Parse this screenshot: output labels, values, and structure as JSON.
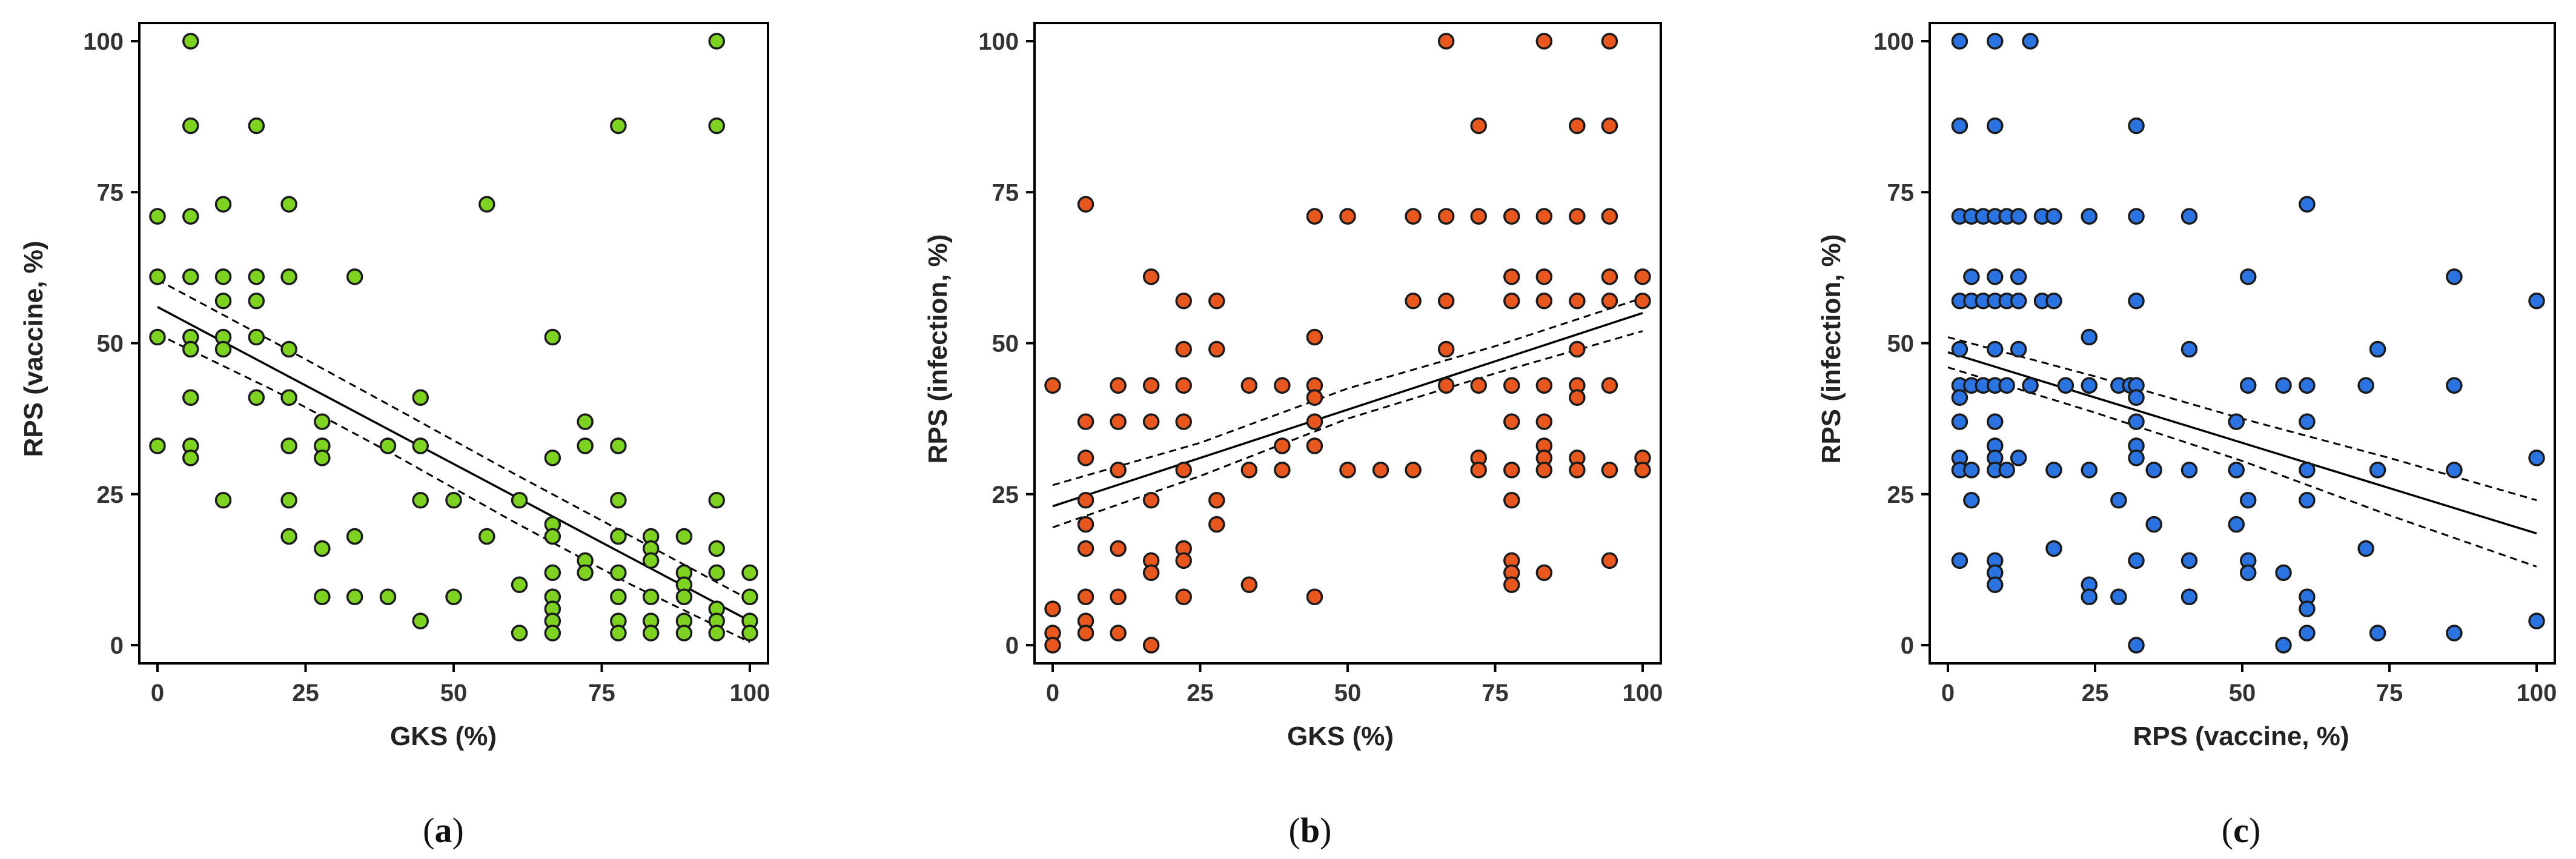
{
  "chart_data": [
    {
      "type": "scatter",
      "panel_label": "a",
      "xlabel": "GKS (%)",
      "ylabel": "RPS (vaccine, %)",
      "xlim": [
        0,
        100
      ],
      "ylim": [
        0,
        100
      ],
      "xticks": [
        0,
        25,
        50,
        75,
        100
      ],
      "yticks": [
        0,
        25,
        50,
        75,
        100
      ],
      "point_color": "#7ed321",
      "points": [
        [
          0,
          71
        ],
        [
          0,
          61
        ],
        [
          0,
          51
        ],
        [
          0,
          33
        ],
        [
          5.6,
          100
        ],
        [
          5.6,
          86
        ],
        [
          5.6,
          71
        ],
        [
          5.6,
          61
        ],
        [
          5.6,
          51
        ],
        [
          5.6,
          49
        ],
        [
          5.6,
          41
        ],
        [
          5.6,
          33
        ],
        [
          5.6,
          31
        ],
        [
          11.1,
          73
        ],
        [
          11.1,
          61
        ],
        [
          11.1,
          57
        ],
        [
          11.1,
          51
        ],
        [
          11.1,
          49
        ],
        [
          11.1,
          24
        ],
        [
          16.7,
          86
        ],
        [
          16.7,
          61
        ],
        [
          16.7,
          57
        ],
        [
          16.7,
          51
        ],
        [
          16.7,
          41
        ],
        [
          22.2,
          73
        ],
        [
          22.2,
          61
        ],
        [
          22.2,
          49
        ],
        [
          22.2,
          41
        ],
        [
          22.2,
          33
        ],
        [
          22.2,
          24
        ],
        [
          22.2,
          18
        ],
        [
          27.8,
          37
        ],
        [
          27.8,
          33
        ],
        [
          27.8,
          31
        ],
        [
          27.8,
          16
        ],
        [
          27.8,
          8
        ],
        [
          33.3,
          61
        ],
        [
          33.3,
          18
        ],
        [
          33.3,
          8
        ],
        [
          38.9,
          33
        ],
        [
          38.9,
          8
        ],
        [
          44.4,
          41
        ],
        [
          44.4,
          33
        ],
        [
          44.4,
          24
        ],
        [
          44.4,
          4
        ],
        [
          50,
          24
        ],
        [
          50,
          8
        ],
        [
          55.6,
          73
        ],
        [
          55.6,
          18
        ],
        [
          61.1,
          24
        ],
        [
          61.1,
          10
        ],
        [
          61.1,
          2
        ],
        [
          66.7,
          51
        ],
        [
          66.7,
          31
        ],
        [
          66.7,
          20
        ],
        [
          66.7,
          18
        ],
        [
          66.7,
          12
        ],
        [
          66.7,
          8
        ],
        [
          66.7,
          6
        ],
        [
          66.7,
          4
        ],
        [
          66.7,
          2
        ],
        [
          72.2,
          37
        ],
        [
          72.2,
          33
        ],
        [
          72.2,
          14
        ],
        [
          72.2,
          12
        ],
        [
          77.8,
          86
        ],
        [
          77.8,
          33
        ],
        [
          77.8,
          24
        ],
        [
          77.8,
          18
        ],
        [
          77.8,
          12
        ],
        [
          77.8,
          8
        ],
        [
          77.8,
          4
        ],
        [
          77.8,
          2
        ],
        [
          83.3,
          18
        ],
        [
          83.3,
          16
        ],
        [
          83.3,
          14
        ],
        [
          83.3,
          8
        ],
        [
          83.3,
          4
        ],
        [
          83.3,
          2
        ],
        [
          88.9,
          18
        ],
        [
          88.9,
          12
        ],
        [
          88.9,
          10
        ],
        [
          88.9,
          8
        ],
        [
          88.9,
          4
        ],
        [
          88.9,
          2
        ],
        [
          94.4,
          100
        ],
        [
          94.4,
          86
        ],
        [
          94.4,
          24
        ],
        [
          94.4,
          16
        ],
        [
          94.4,
          12
        ],
        [
          94.4,
          6
        ],
        [
          94.4,
          4
        ],
        [
          94.4,
          2
        ],
        [
          100,
          12
        ],
        [
          100,
          8
        ],
        [
          100,
          4
        ],
        [
          100,
          2
        ]
      ],
      "regression": {
        "x": [
          0,
          100
        ],
        "y": [
          56,
          4
        ]
      },
      "ci_upper": {
        "x": [
          0,
          20,
          40,
          60,
          80,
          100
        ],
        "y": [
          60.5,
          50,
          39.3,
          28.5,
          18,
          7.5
        ]
      },
      "ci_lower": {
        "x": [
          0,
          20,
          40,
          60,
          80,
          100
        ],
        "y": [
          51.5,
          42,
          31.5,
          20.5,
          10,
          0.5
        ]
      }
    },
    {
      "type": "scatter",
      "panel_label": "b",
      "xlabel": "GKS (%)",
      "ylabel": "RPS (infection, %)",
      "xlim": [
        0,
        100
      ],
      "ylim": [
        0,
        100
      ],
      "xticks": [
        0,
        25,
        50,
        75,
        100
      ],
      "yticks": [
        0,
        25,
        50,
        75,
        100
      ],
      "point_color": "#e8571e",
      "points": [
        [
          0,
          43
        ],
        [
          0,
          6
        ],
        [
          0,
          2
        ],
        [
          0,
          0
        ],
        [
          5.6,
          73
        ],
        [
          5.6,
          37
        ],
        [
          5.6,
          31
        ],
        [
          5.6,
          24
        ],
        [
          5.6,
          20
        ],
        [
          5.6,
          16
        ],
        [
          5.6,
          8
        ],
        [
          5.6,
          4
        ],
        [
          5.6,
          2
        ],
        [
          11.1,
          43
        ],
        [
          11.1,
          37
        ],
        [
          11.1,
          29
        ],
        [
          11.1,
          16
        ],
        [
          11.1,
          8
        ],
        [
          11.1,
          2
        ],
        [
          16.7,
          61
        ],
        [
          16.7,
          43
        ],
        [
          16.7,
          37
        ],
        [
          16.7,
          24
        ],
        [
          16.7,
          14
        ],
        [
          16.7,
          12
        ],
        [
          16.7,
          0
        ],
        [
          22.2,
          57
        ],
        [
          22.2,
          49
        ],
        [
          22.2,
          43
        ],
        [
          22.2,
          37
        ],
        [
          22.2,
          29
        ],
        [
          22.2,
          16
        ],
        [
          22.2,
          14
        ],
        [
          22.2,
          8
        ],
        [
          27.8,
          57
        ],
        [
          27.8,
          49
        ],
        [
          27.8,
          24
        ],
        [
          27.8,
          20
        ],
        [
          33.3,
          43
        ],
        [
          33.3,
          29
        ],
        [
          33.3,
          10
        ],
        [
          38.9,
          43
        ],
        [
          38.9,
          33
        ],
        [
          38.9,
          29
        ],
        [
          44.4,
          71
        ],
        [
          44.4,
          51
        ],
        [
          44.4,
          43
        ],
        [
          44.4,
          41
        ],
        [
          44.4,
          37
        ],
        [
          44.4,
          33
        ],
        [
          44.4,
          8
        ],
        [
          50,
          71
        ],
        [
          50,
          29
        ],
        [
          55.6,
          29
        ],
        [
          61.1,
          71
        ],
        [
          61.1,
          57
        ],
        [
          61.1,
          29
        ],
        [
          66.7,
          100
        ],
        [
          66.7,
          71
        ],
        [
          66.7,
          57
        ],
        [
          66.7,
          49
        ],
        [
          66.7,
          43
        ],
        [
          72.2,
          86
        ],
        [
          72.2,
          71
        ],
        [
          72.2,
          43
        ],
        [
          72.2,
          31
        ],
        [
          72.2,
          29
        ],
        [
          77.8,
          71
        ],
        [
          77.8,
          61
        ],
        [
          77.8,
          57
        ],
        [
          77.8,
          43
        ],
        [
          77.8,
          37
        ],
        [
          77.8,
          29
        ],
        [
          77.8,
          24
        ],
        [
          77.8,
          14
        ],
        [
          77.8,
          12
        ],
        [
          77.8,
          10
        ],
        [
          83.3,
          100
        ],
        [
          83.3,
          71
        ],
        [
          83.3,
          61
        ],
        [
          83.3,
          57
        ],
        [
          83.3,
          43
        ],
        [
          83.3,
          37
        ],
        [
          83.3,
          33
        ],
        [
          83.3,
          31
        ],
        [
          83.3,
          29
        ],
        [
          83.3,
          12
        ],
        [
          88.9,
          86
        ],
        [
          88.9,
          71
        ],
        [
          88.9,
          57
        ],
        [
          88.9,
          49
        ],
        [
          88.9,
          43
        ],
        [
          88.9,
          41
        ],
        [
          88.9,
          31
        ],
        [
          88.9,
          29
        ],
        [
          94.4,
          100
        ],
        [
          94.4,
          86
        ],
        [
          94.4,
          71
        ],
        [
          94.4,
          61
        ],
        [
          94.4,
          57
        ],
        [
          94.4,
          43
        ],
        [
          94.4,
          29
        ],
        [
          94.4,
          14
        ],
        [
          100,
          61
        ],
        [
          100,
          57
        ],
        [
          100,
          31
        ],
        [
          100,
          29
        ]
      ],
      "regression": {
        "x": [
          0,
          100
        ],
        "y": [
          23,
          55
        ]
      },
      "ci_upper": {
        "x": [
          0,
          25,
          50,
          75,
          100
        ],
        "y": [
          26.5,
          33.5,
          42.5,
          49.5,
          57.5
        ]
      },
      "ci_lower": {
        "x": [
          0,
          25,
          50,
          75,
          100
        ],
        "y": [
          19.5,
          28,
          37.5,
          45,
          52
        ]
      }
    },
    {
      "type": "scatter",
      "panel_label": "c",
      "xlabel": "RPS (vaccine, %)",
      "ylabel": "RPS (infection, %)",
      "xlim": [
        0,
        100
      ],
      "ylim": [
        0,
        100
      ],
      "xticks": [
        0,
        25,
        50,
        75,
        100
      ],
      "yticks": [
        0,
        25,
        50,
        75,
        100
      ],
      "point_color": "#2b73e0",
      "points": [
        [
          2,
          100
        ],
        [
          2,
          86
        ],
        [
          2,
          71
        ],
        [
          2,
          57
        ],
        [
          2,
          49
        ],
        [
          2,
          43
        ],
        [
          2,
          41
        ],
        [
          2,
          37
        ],
        [
          2,
          31
        ],
        [
          2,
          29
        ],
        [
          2,
          14
        ],
        [
          4,
          71
        ],
        [
          4,
          61
        ],
        [
          4,
          57
        ],
        [
          4,
          43
        ],
        [
          4,
          29
        ],
        [
          4,
          24
        ],
        [
          6,
          71
        ],
        [
          6,
          57
        ],
        [
          6,
          43
        ],
        [
          8,
          100
        ],
        [
          8,
          86
        ],
        [
          8,
          71
        ],
        [
          8,
          61
        ],
        [
          8,
          57
        ],
        [
          8,
          49
        ],
        [
          8,
          43
        ],
        [
          8,
          37
        ],
        [
          8,
          33
        ],
        [
          8,
          31
        ],
        [
          8,
          29
        ],
        [
          8,
          14
        ],
        [
          8,
          12
        ],
        [
          8,
          10
        ],
        [
          10,
          71
        ],
        [
          10,
          57
        ],
        [
          10,
          43
        ],
        [
          10,
          29
        ],
        [
          12,
          71
        ],
        [
          12,
          61
        ],
        [
          12,
          57
        ],
        [
          12,
          49
        ],
        [
          12,
          31
        ],
        [
          14,
          100
        ],
        [
          14,
          43
        ],
        [
          16,
          71
        ],
        [
          16,
          57
        ],
        [
          18,
          71
        ],
        [
          18,
          57
        ],
        [
          18,
          29
        ],
        [
          18,
          16
        ],
        [
          20,
          43
        ],
        [
          24,
          71
        ],
        [
          24,
          51
        ],
        [
          24,
          43
        ],
        [
          24,
          29
        ],
        [
          24,
          10
        ],
        [
          24,
          8
        ],
        [
          29,
          43
        ],
        [
          29,
          24
        ],
        [
          29,
          8
        ],
        [
          31,
          43
        ],
        [
          32,
          86
        ],
        [
          32,
          71
        ],
        [
          32,
          57
        ],
        [
          32,
          43
        ],
        [
          32,
          41
        ],
        [
          32,
          37
        ],
        [
          32,
          33
        ],
        [
          32,
          31
        ],
        [
          32,
          14
        ],
        [
          32,
          0
        ],
        [
          35,
          29
        ],
        [
          35,
          20
        ],
        [
          41,
          71
        ],
        [
          41,
          49
        ],
        [
          41,
          29
        ],
        [
          41,
          14
        ],
        [
          41,
          8
        ],
        [
          49,
          37
        ],
        [
          49,
          29
        ],
        [
          49,
          20
        ],
        [
          51,
          61
        ],
        [
          51,
          43
        ],
        [
          51,
          24
        ],
        [
          51,
          14
        ],
        [
          51,
          12
        ],
        [
          57,
          43
        ],
        [
          57,
          12
        ],
        [
          57,
          0
        ],
        [
          61,
          73
        ],
        [
          61,
          43
        ],
        [
          61,
          37
        ],
        [
          61,
          29
        ],
        [
          61,
          24
        ],
        [
          61,
          8
        ],
        [
          61,
          6
        ],
        [
          61,
          2
        ],
        [
          71,
          43
        ],
        [
          71,
          16
        ],
        [
          73,
          49
        ],
        [
          73,
          29
        ],
        [
          73,
          2
        ],
        [
          86,
          61
        ],
        [
          86,
          43
        ],
        [
          86,
          29
        ],
        [
          86,
          2
        ],
        [
          100,
          57
        ],
        [
          100,
          31
        ],
        [
          100,
          4
        ]
      ],
      "regression": {
        "x": [
          0,
          100
        ],
        "y": [
          48.5,
          18.5
        ]
      },
      "ci_upper": {
        "x": [
          0,
          25,
          50,
          75,
          100
        ],
        "y": [
          51,
          44.5,
          37.5,
          31,
          24
        ]
      },
      "ci_lower": {
        "x": [
          0,
          25,
          50,
          75,
          100
        ],
        "y": [
          46,
          38.5,
          30.5,
          21.5,
          13
        ]
      }
    }
  ]
}
